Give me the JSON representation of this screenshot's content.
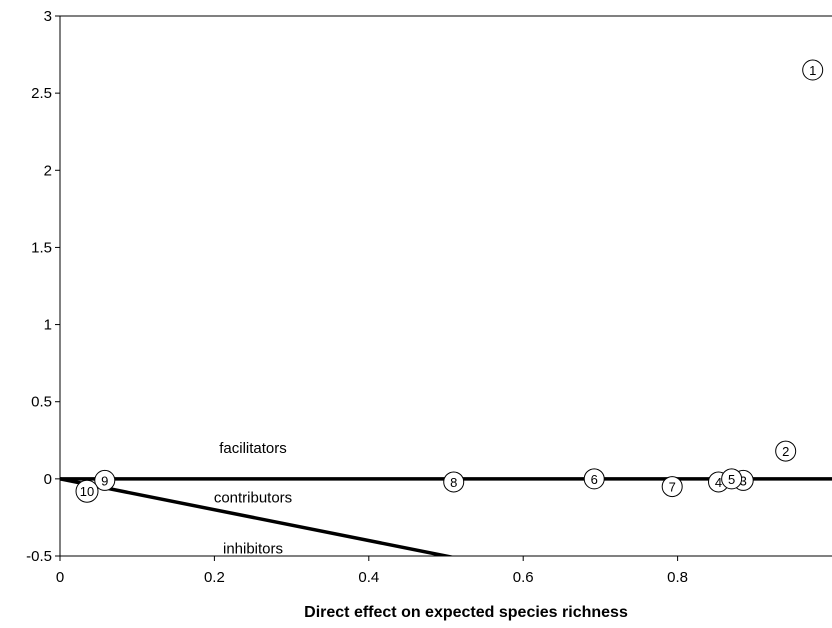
{
  "chart_data": {
    "type": "scatter",
    "title": "",
    "xlabel": "Direct effect on expected species richness",
    "ylabel": "",
    "xlim": [
      0,
      1
    ],
    "ylim": [
      -0.5,
      3
    ],
    "x_ticks": [
      "0",
      "0.2",
      "0.4",
      "0.6",
      "0.8"
    ],
    "x_tick_values": [
      0,
      0.2,
      0.4,
      0.6,
      0.8
    ],
    "y_ticks": [
      "-0.5",
      "0",
      "0.5",
      "1",
      "1.5",
      "2",
      "2.5",
      "3"
    ],
    "y_tick_values": [
      -0.5,
      0,
      0.5,
      1,
      1.5,
      2,
      2.5,
      3
    ],
    "grid": false,
    "points": [
      {
        "label": "1",
        "x": 0.975,
        "y": 2.65
      },
      {
        "label": "2",
        "x": 0.94,
        "y": 0.18
      },
      {
        "label": "3",
        "x": 0.885,
        "y": -0.01
      },
      {
        "label": "4",
        "x": 0.853,
        "y": -0.02
      },
      {
        "label": "5",
        "x": 0.87,
        "y": 0.0
      },
      {
        "label": "6",
        "x": 0.692,
        "y": 0.0
      },
      {
        "label": "7",
        "x": 0.793,
        "y": -0.05
      },
      {
        "label": "8",
        "x": 0.51,
        "y": -0.02
      },
      {
        "label": "9",
        "x": 0.058,
        "y": -0.01
      },
      {
        "label": "10",
        "x": 0.035,
        "y": -0.08
      }
    ],
    "lines": [
      {
        "name": "horizontal",
        "x": [
          0,
          1
        ],
        "y": [
          0,
          0
        ]
      },
      {
        "name": "diagonal",
        "x": [
          0,
          0.6
        ],
        "y": [
          0,
          -0.6
        ]
      }
    ],
    "annotations": [
      {
        "text": "facilitators",
        "x": 0.25,
        "y": 0.2
      },
      {
        "text": "contributors",
        "x": 0.25,
        "y": -0.12
      },
      {
        "text": "inhibitors",
        "x": 0.25,
        "y": -0.45
      }
    ]
  }
}
